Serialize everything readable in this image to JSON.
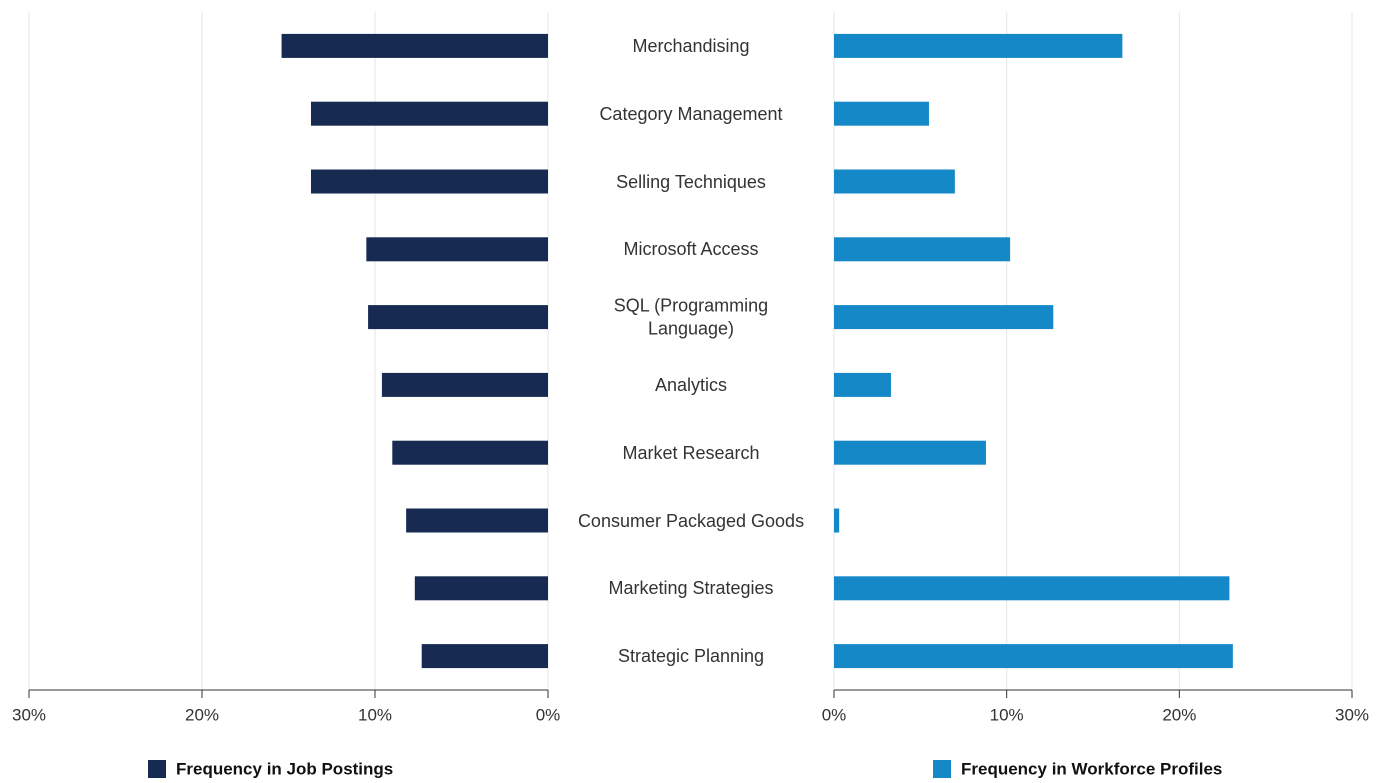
{
  "chart_data": {
    "type": "butterfly",
    "categories": [
      "Merchandising",
      "Category Management",
      "Selling Techniques",
      "Microsoft Access",
      "SQL (Programming Language)",
      "Analytics",
      "Market Research",
      "Consumer Packaged Goods",
      "Marketing Strategies",
      "Strategic Planning"
    ],
    "series": [
      {
        "name": "Frequency in Job Postings",
        "color": "#162a52",
        "values": [
          15.4,
          13.7,
          13.7,
          10.5,
          10.4,
          9.6,
          9.0,
          8.2,
          7.7,
          7.3
        ]
      },
      {
        "name": "Frequency in Workforce Profiles",
        "color": "#1589c8",
        "values": [
          16.7,
          5.5,
          7.0,
          10.2,
          12.7,
          3.3,
          8.8,
          0.3,
          22.9,
          23.1
        ]
      }
    ],
    "xlim": [
      0,
      30
    ],
    "xticks": [
      {
        "value": 0,
        "label": "0%"
      },
      {
        "value": 10,
        "label": "10%"
      },
      {
        "value": 20,
        "label": "20%"
      },
      {
        "value": 30,
        "label": "30%"
      }
    ],
    "grid": true
  }
}
